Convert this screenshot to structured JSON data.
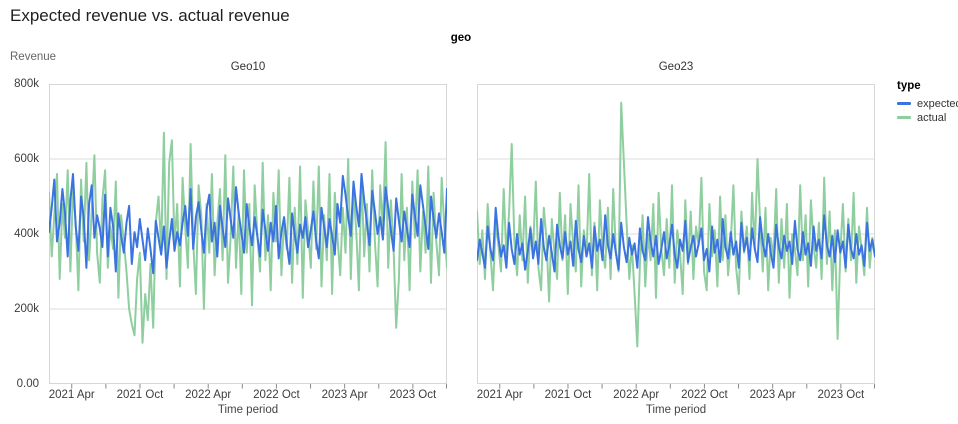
{
  "title": "Expected revenue vs. actual revenue",
  "facet_header": "geo",
  "y_axis_title": "Revenue",
  "x_axis_title": "Time period",
  "legend": {
    "title": "type",
    "items": [
      {
        "label": "expected",
        "color": "#3b74e0"
      },
      {
        "label": "actual",
        "color": "#8fce9f"
      }
    ]
  },
  "colors": {
    "expected_line": "#3b74e0",
    "actual_line": "#8fce9f",
    "gridline": "#dddddd",
    "plot_border": "#d6d6d6",
    "tick_mark": "#898989"
  },
  "chart_data": {
    "type": "line",
    "title": "Expected revenue vs. actual revenue",
    "facet_field": "geo",
    "xlabel": "Time period",
    "ylabel": "Revenue",
    "unit": "values in thousands (k) of revenue, weekly points Feb 2021 - Jan 2024",
    "ylim_k": [
      0,
      800
    ],
    "month_span": 35,
    "grid": "horizontal-only",
    "legend_position": "right",
    "y_ticks": [
      {
        "value_k": 800,
        "label": "800k"
      },
      {
        "value_k": 600,
        "label": "600k"
      },
      {
        "value_k": 400,
        "label": "400k"
      },
      {
        "value_k": 200,
        "label": "200k"
      },
      {
        "value_k": 0,
        "label": "0.00"
      }
    ],
    "x_ticks": [
      {
        "month": 2,
        "label": "2021 Apr"
      },
      {
        "month": 5,
        "label": ""
      },
      {
        "month": 8,
        "label": "2021 Oct"
      },
      {
        "month": 11,
        "label": ""
      },
      {
        "month": 14,
        "label": "2022 Apr"
      },
      {
        "month": 17,
        "label": ""
      },
      {
        "month": 20,
        "label": "2022 Oct"
      },
      {
        "month": 23,
        "label": ""
      },
      {
        "month": 26,
        "label": "2023 Apr"
      },
      {
        "month": 29,
        "label": ""
      },
      {
        "month": 32,
        "label": "2023 Oct"
      },
      {
        "month": 35,
        "label": ""
      }
    ],
    "facets": [
      {
        "title": "Geo10",
        "series": [
          {
            "name": "expected",
            "color": "#3b74e0",
            "values_k": [
              405,
              470,
              545,
              380,
              430,
              520,
              455,
              340,
              490,
              560,
              420,
              355,
              500,
              445,
              310,
              480,
              530,
              390,
              450,
              415,
              365,
              505,
              340,
              470,
              420,
              300,
              455,
              395,
              350,
              430,
              475,
              320,
              405,
              365,
              440,
              385,
              330,
              415,
              360,
              295,
              435,
              390,
              345,
              420,
              310,
              380,
              440,
              355,
              405,
              370,
              430,
              475,
              395,
              520,
              360,
              445,
              485,
              410,
              350,
              465,
              505,
              380,
              430,
              340,
              475,
              415,
              365,
              495,
              440,
              390,
              525,
              455,
              405,
              350,
              480,
              420,
              370,
              445,
              395,
              340,
              465,
              410,
              355,
              430,
              380,
              475,
              335,
              405,
              445,
              375,
              320,
              455,
              400,
              350,
              425,
              390,
              445,
              365,
              410,
              460,
              385,
              335,
              470,
              420,
              365,
              440,
              395,
              345,
              480,
              430,
              555,
              505,
              445,
              395,
              540,
              475,
              420,
              560,
              490,
              430,
              370,
              515,
              460,
              400,
              445,
              385,
              525,
              470,
              410,
              355,
              495,
              435,
              380,
              460,
              415,
              365,
              505,
              450,
              395,
              530,
              475,
              420,
              360,
              500,
              440,
              390,
              455,
              405,
              350,
              520
            ]
          },
          {
            "name": "actual",
            "color": "#8fce9f",
            "values_k": [
              510,
              340,
              450,
              560,
              280,
              480,
              390,
              570,
              300,
              520,
              430,
              250,
              545,
              380,
              590,
              330,
              460,
              610,
              350,
              270,
              490,
              570,
              310,
              420,
              360,
              540,
              230,
              450,
              380,
              300,
              200,
              160,
              130,
              280,
              350,
              110,
              240,
              170,
              320,
              150,
              430,
              500,
              360,
              670,
              280,
              590,
              650,
              370,
              480,
              260,
              550,
              420,
              310,
              640,
              380,
              240,
              530,
              450,
              200,
              480,
              350,
              560,
              290,
              430,
              520,
              330,
              610,
              270,
              390,
              580,
              310,
              460,
              240,
              570,
              350,
              480,
              210,
              530,
              400,
              300,
              590,
              330,
              450,
              250,
              510,
              380,
              570,
              290,
              440,
              360,
              550,
              270,
              470,
              320,
              580,
              230,
              490,
              410,
              310,
              540,
              360,
              580,
              260,
              450,
              330,
              560,
              240,
              510,
              390,
              290,
              470,
              350,
              600,
              280,
              520,
              410,
              250,
              560,
              340,
              480,
              300,
              570,
              380,
              260,
              530,
              420,
              645,
              310,
              490,
              360,
              150,
              280,
              560,
              330,
              470,
              250,
              540,
              390,
              570,
              300,
              460,
              350,
              580,
              270,
              510,
              380,
              290,
              550,
              420,
              310
            ]
          }
        ]
      },
      {
        "title": "Geo23",
        "series": [
          {
            "name": "expected",
            "color": "#3b74e0",
            "values_k": [
              330,
              385,
              350,
              310,
              420,
              360,
              330,
              470,
              390,
              340,
              370,
              310,
              430,
              360,
              320,
              400,
              345,
              375,
              305,
              355,
              415,
              335,
              380,
              320,
              440,
              365,
              330,
              395,
              350,
              300,
              425,
              370,
              335,
              405,
              345,
              380,
              315,
              435,
              360,
              325,
              395,
              340,
              375,
              310,
              420,
              355,
              385,
              330,
              450,
              370,
              335,
              400,
              350,
              305,
              430,
              365,
              325,
              390,
              345,
              375,
              310,
              415,
              355,
              330,
              445,
              380,
              340,
              395,
              320,
              360,
              405,
              335,
              370,
              425,
              345,
              310,
              385,
              355,
              435,
              325,
              365,
              395,
              340,
              375,
              415,
              330,
              360,
              300,
              420,
              350,
              385,
              325,
              440,
              365,
              335,
              405,
              345,
              380,
              310,
              430,
              355,
              390,
              330,
              415,
              360,
              325,
              445,
              375,
              340,
              400,
              350,
              310,
              425,
              365,
              335,
              395,
              355,
              380,
              320,
              435,
              360,
              330,
              405,
              345,
              375,
              315,
              420,
              355,
              385,
              335,
              450,
              370,
              340,
              395,
              325,
              410,
              350,
              380,
              310,
              425,
              360,
              335,
              400,
              345,
              370,
              315,
              430,
              355,
              385,
              340
            ]
          },
          {
            "name": "actual",
            "color": "#8fce9f",
            "values_k": [
              460,
              320,
              410,
              280,
              480,
              350,
              250,
              430,
              370,
              300,
              520,
              340,
              460,
              640,
              380,
              290,
              450,
              330,
              500,
              270,
              420,
              360,
              540,
              310,
              250,
              470,
              390,
              220,
              440,
              350,
              280,
              510,
              330,
              450,
              240,
              480,
              370,
              300,
              530,
              260,
              410,
              340,
              560,
              290,
              430,
              250,
              490,
              360,
              310,
              470,
              280,
              520,
              350,
              300,
              750,
              590,
              430,
              280,
              370,
              240,
              100,
              320,
              450,
              260,
              400,
              330,
              480,
              230,
              510,
              360,
              290,
              440,
              310,
              530,
              270,
              410,
              350,
              240,
              490,
              320,
              460,
              280,
              420,
              370,
              550,
              300,
              250,
              480,
              340,
              410,
              260,
              500,
              330,
              450,
              290,
              380,
              530,
              310,
              240,
              460,
              350,
              420,
              280,
              510,
              360,
              600,
              430,
              300,
              470,
              250,
              390,
              340,
              520,
              270,
              440,
              310,
              480,
              230,
              400,
              360,
              290,
              530,
              330,
              450,
              260,
              490,
              370,
              310,
              430,
              280,
              550,
              320,
              460,
              250,
              410,
              120,
              350,
              480,
              300,
              440,
              330,
              510,
              270,
              420,
              360,
              290,
              470,
              310,
              390,
              340
            ]
          }
        ]
      }
    ]
  }
}
